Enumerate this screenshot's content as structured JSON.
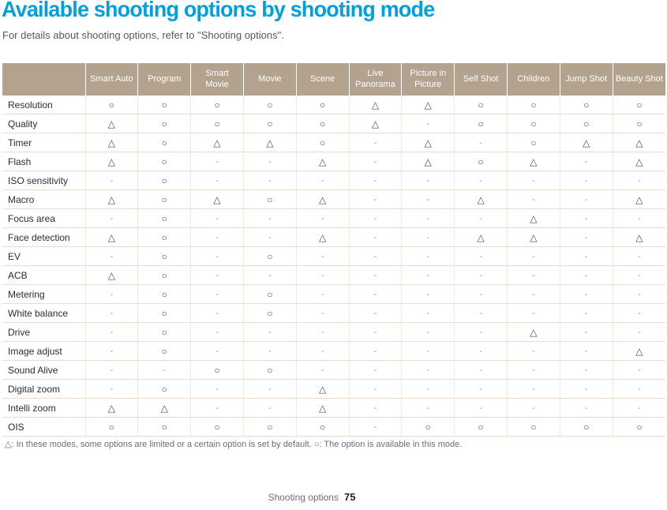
{
  "page": {
    "title": "Available shooting options by shooting mode",
    "subtitle": "For details about shooting options, refer to \"Shooting options\".",
    "footnote": "△: In these modes, some options are limited or a certain option is set by default. ○: The option is available in this mode.",
    "footer_label": "Shooting options",
    "footer_page": "75"
  },
  "colors": {
    "title_accent": "#00a0dc",
    "header_bg": "#b3a28e",
    "row_line": "#e6ddcf"
  },
  "table": {
    "corner_label": "",
    "columns": [
      "Smart Auto",
      "Program",
      "Smart Movie",
      "Movie",
      "Scene",
      "Live Panorama",
      "Picture in Picture",
      "Self Shot",
      "Children",
      "Jump Shot",
      "Beauty Shot"
    ],
    "rows": [
      {
        "label": "Resolution",
        "values": [
          "○",
          "○",
          "○",
          "○",
          "○",
          "△",
          "△",
          "○",
          "○",
          "○",
          "○"
        ]
      },
      {
        "label": "Quality",
        "values": [
          "△",
          "○",
          "○",
          "○",
          "○",
          "△",
          "-",
          "○",
          "○",
          "○",
          "○"
        ]
      },
      {
        "label": "Timer",
        "values": [
          "△",
          "○",
          "△",
          "△",
          "○",
          "-",
          "△",
          "-",
          "○",
          "△",
          "△"
        ]
      },
      {
        "label": "Flash",
        "values": [
          "△",
          "○",
          "-",
          "-",
          "△",
          "-",
          "△",
          "○",
          "△",
          "-",
          "△"
        ]
      },
      {
        "label": "ISO sensitivity",
        "values": [
          "-",
          "○",
          "-",
          "-",
          "-",
          "-",
          "-",
          "-",
          "-",
          "-",
          "-"
        ]
      },
      {
        "label": "Macro",
        "values": [
          "△",
          "○",
          "△",
          "○",
          "△",
          "-",
          "-",
          "△",
          "-",
          "-",
          "△"
        ]
      },
      {
        "label": "Focus area",
        "values": [
          "-",
          "○",
          "-",
          "-",
          "-",
          "-",
          "-",
          "-",
          "△",
          "-",
          "-"
        ]
      },
      {
        "label": "Face detection",
        "values": [
          "△",
          "○",
          "-",
          "-",
          "△",
          "-",
          "-",
          "△",
          "△",
          "-",
          "△"
        ]
      },
      {
        "label": "EV",
        "values": [
          "-",
          "○",
          "-",
          "○",
          "-",
          "-",
          "-",
          "-",
          "-",
          "-",
          "-"
        ]
      },
      {
        "label": "ACB",
        "values": [
          "△",
          "○",
          "-",
          "-",
          "-",
          "-",
          "-",
          "-",
          "-",
          "-",
          "-"
        ]
      },
      {
        "label": "Metering",
        "values": [
          "-",
          "○",
          "-",
          "○",
          "-",
          "-",
          "-",
          "-",
          "-",
          "-",
          "-"
        ]
      },
      {
        "label": "White balance",
        "values": [
          "-",
          "○",
          "-",
          "○",
          "-",
          "-",
          "-",
          "-",
          "-",
          "-",
          "-"
        ]
      },
      {
        "label": "Drive",
        "values": [
          "-",
          "○",
          "-",
          "-",
          "-",
          "-",
          "-",
          "-",
          "△",
          "-",
          "-"
        ]
      },
      {
        "label": "Image adjust",
        "values": [
          "-",
          "○",
          "-",
          "-",
          "-",
          "-",
          "-",
          "-",
          "-",
          "-",
          "△"
        ]
      },
      {
        "label": "Sound Alive",
        "values": [
          "-",
          "-",
          "○",
          "○",
          "-",
          "-",
          "-",
          "-",
          "-",
          "-",
          "-"
        ]
      },
      {
        "label": "Digital zoom",
        "values": [
          "-",
          "○",
          "-",
          "-",
          "△",
          "-",
          "-",
          "-",
          "-",
          "-",
          "-"
        ]
      },
      {
        "label": "Intelli zoom",
        "values": [
          "△",
          "△",
          "-",
          "-",
          "△",
          "-",
          "-",
          "-",
          "-",
          "-",
          "-"
        ]
      },
      {
        "label": "OIS",
        "values": [
          "○",
          "○",
          "○",
          "○",
          "○",
          "-",
          "○",
          "○",
          "○",
          "○",
          "○"
        ]
      }
    ]
  }
}
